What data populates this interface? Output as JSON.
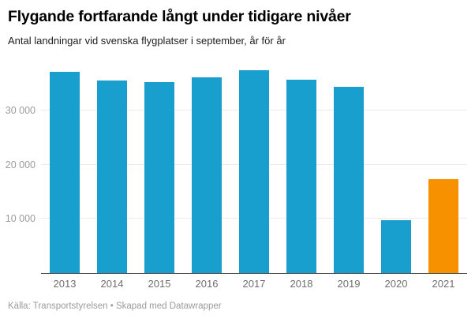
{
  "chart_data": {
    "type": "bar",
    "title": "Flygande fortfarande långt under tidigare nivåer",
    "subtitle": "Antal landningar vid svenska flygplatser i september, år för år",
    "source_note": "Källa: Transportstyrelsen • Skapad med Datawrapper",
    "categories": [
      "2013",
      "2014",
      "2015",
      "2016",
      "2017",
      "2018",
      "2019",
      "2020",
      "2021"
    ],
    "values": [
      37100,
      35500,
      35200,
      36100,
      37400,
      35600,
      34400,
      9800,
      17400
    ],
    "xlabel": "",
    "ylabel": "",
    "ylim": [
      0,
      38000
    ],
    "yticks": [
      {
        "value": 10000,
        "label": "10 000"
      },
      {
        "value": 20000,
        "label": "20 000"
      },
      {
        "value": 30000,
        "label": "30 000"
      }
    ],
    "grid": true,
    "legend": "none",
    "bar_color": "#189FCD",
    "highlight_color": "#F79100",
    "highlight_index": 8,
    "axis_color": "#4d4d4d",
    "grid_color": "#ebebeb",
    "tick_label_color": "#9b9b9b",
    "x_label_color": "#6e6e6e"
  }
}
